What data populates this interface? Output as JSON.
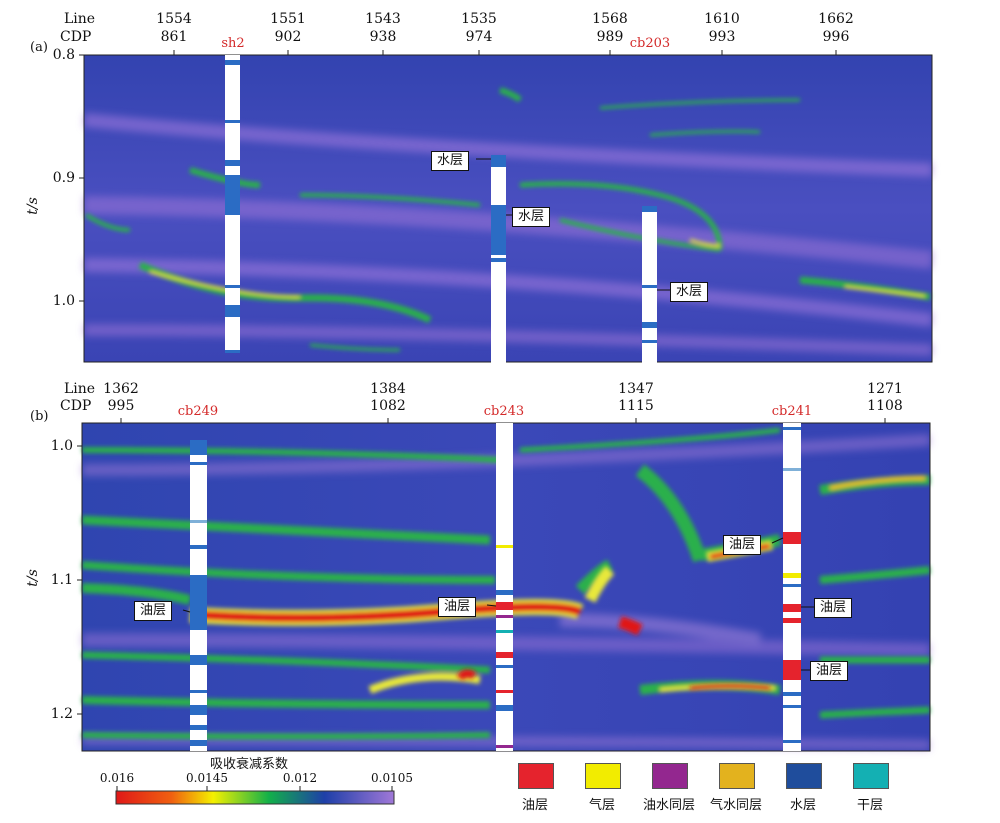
{
  "panel_a": {
    "label": "(a)",
    "line_header": "Line",
    "cdp_header": "CDP",
    "columns": [
      {
        "line": "1554",
        "cdp": "861"
      },
      {
        "line": "1551",
        "cdp": "902"
      },
      {
        "line": "1543",
        "cdp": "938"
      },
      {
        "line": "1535",
        "cdp": "974"
      },
      {
        "line": "1568",
        "cdp": "989"
      },
      {
        "line": "1610",
        "cdp": "993"
      },
      {
        "line": "1662",
        "cdp": "996"
      }
    ],
    "wells": [
      "sh2",
      "cb203"
    ],
    "y_ticks": [
      "0.8",
      "0.9",
      "1.0"
    ],
    "y_label": "t/s",
    "callouts": [
      "水层",
      "水层",
      "水层"
    ]
  },
  "panel_b": {
    "label": "(b)",
    "line_header": "Line",
    "cdp_header": "CDP",
    "columns": [
      {
        "line": "1362",
        "cdp": "995"
      },
      {
        "line": "1384",
        "cdp": "1082"
      },
      {
        "line": "1347",
        "cdp": "1115"
      },
      {
        "line": "1271",
        "cdp": "1108"
      }
    ],
    "wells": [
      "cb249",
      "cb243",
      "cb241"
    ],
    "y_ticks": [
      "1.0",
      "1.1",
      "1.2"
    ],
    "y_label": "t/s",
    "callouts": [
      "油层",
      "油层",
      "油层",
      "油层",
      "油层"
    ]
  },
  "colorbar": {
    "title": "吸收衰减系数",
    "ticks": [
      "0.016",
      "0.0145",
      "0.012",
      "0.0105"
    ],
    "colors": [
      "#e01818",
      "#f4f000",
      "#12b04a",
      "#1e3fa8",
      "#a078d8"
    ]
  },
  "legend": [
    {
      "label": "油层",
      "color": "#e5232d"
    },
    {
      "label": "气层",
      "color": "#f2ec00"
    },
    {
      "label": "油水同层",
      "color": "#93278f"
    },
    {
      "label": "气水同层",
      "color": "#e3b21e"
    },
    {
      "label": "水层",
      "color": "#1f4d9c"
    },
    {
      "label": "干层",
      "color": "#14b0b3"
    }
  ]
}
